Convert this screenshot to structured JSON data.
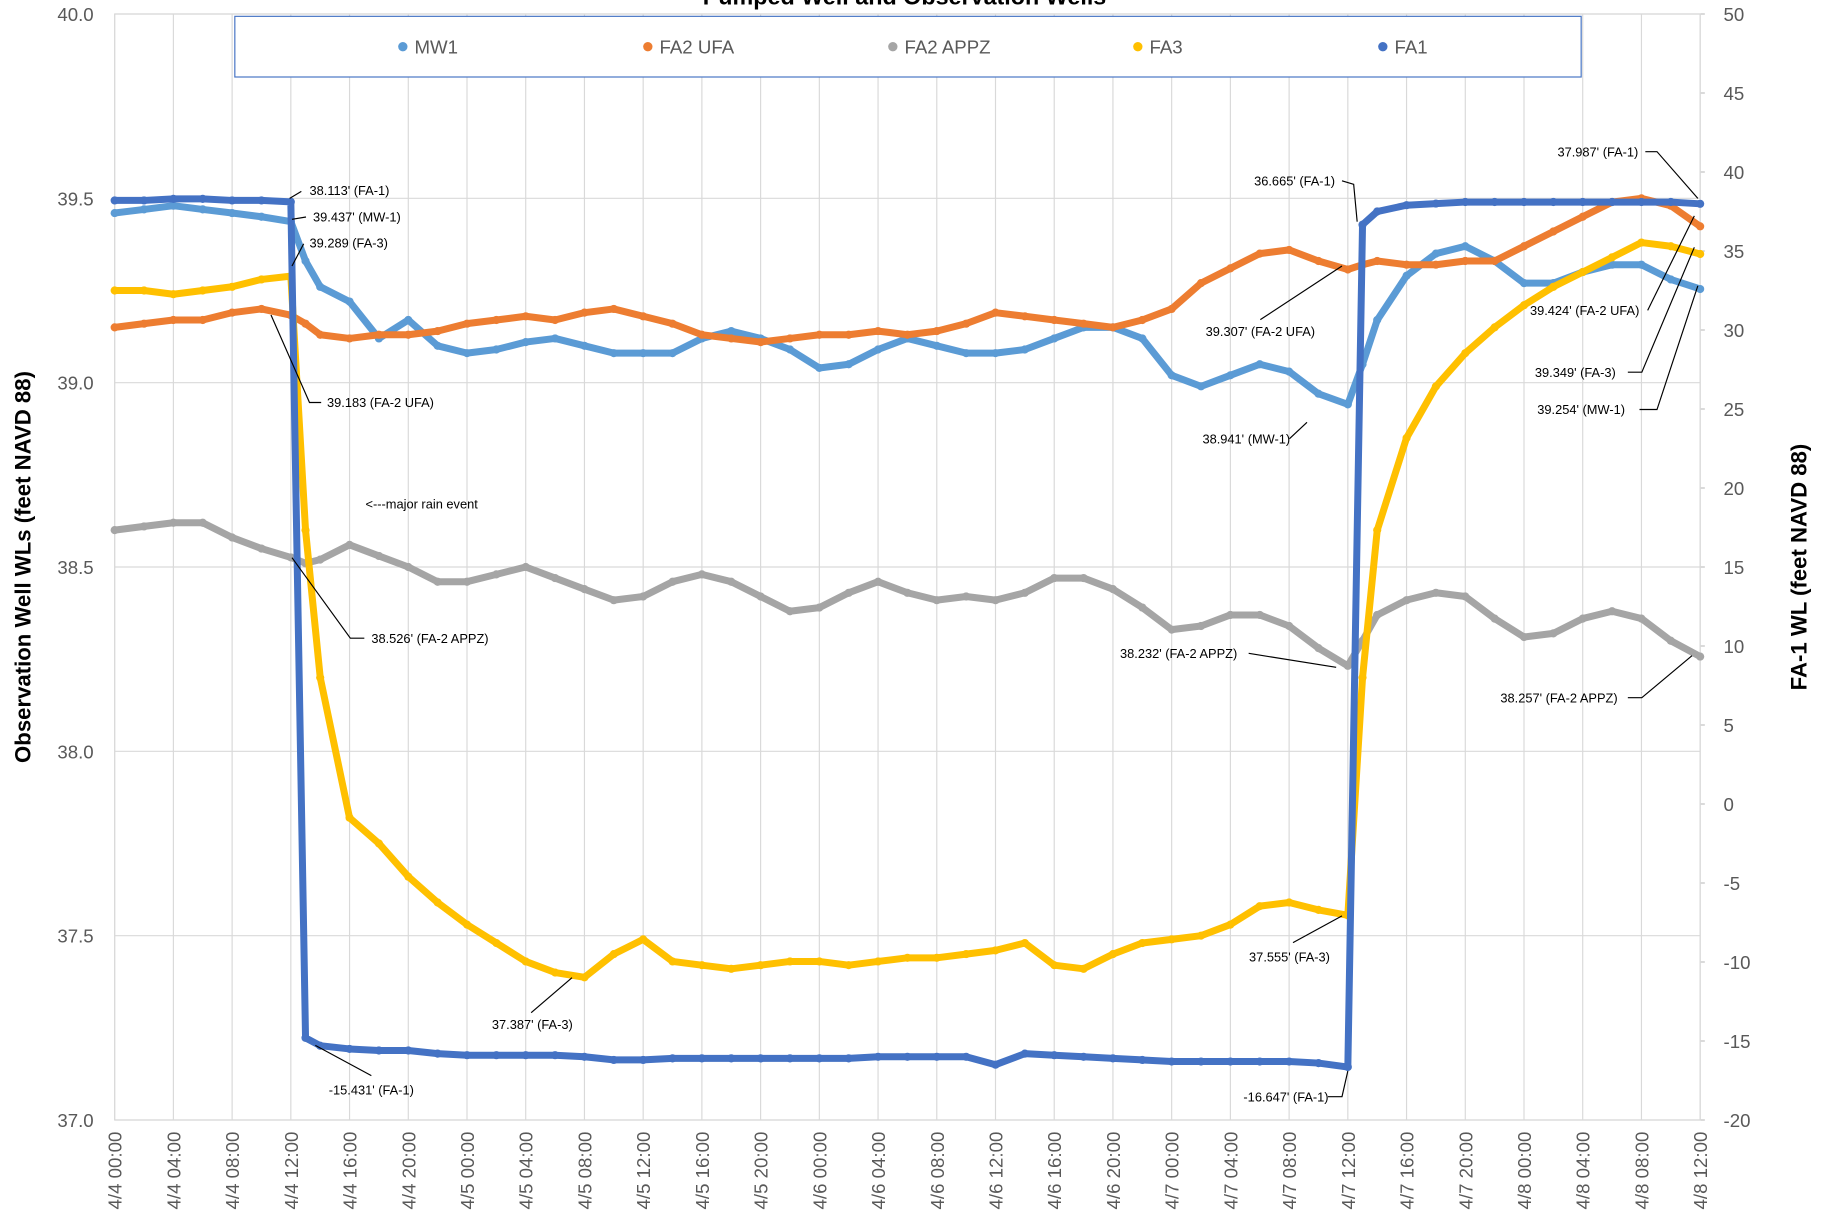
{
  "chart_data": {
    "type": "scatter",
    "title": "Pumped Well and Observation Wells",
    "y_label": "Observation Well WLs (feet NAVD 88)",
    "y2_label": "FA-1 WL (feet NAVD 88)",
    "x": [
      "4/4 00:00",
      "4/4 02:00",
      "4/4 04:00",
      "4/4 06:00",
      "4/4 08:00",
      "4/4 10:00",
      "4/4 12:00",
      "4/4 13:00",
      "4/4 14:00",
      "4/4 16:00",
      "4/4 18:00",
      "4/4 20:00",
      "4/4 22:00",
      "4/5 00:00",
      "4/5 02:00",
      "4/5 04:00",
      "4/5 06:00",
      "4/5 08:00",
      "4/5 10:00",
      "4/5 12:00",
      "4/5 14:00",
      "4/5 16:00",
      "4/5 18:00",
      "4/5 20:00",
      "4/5 22:00",
      "4/6 00:00",
      "4/6 02:00",
      "4/6 04:00",
      "4/6 06:00",
      "4/6 08:00",
      "4/6 10:00",
      "4/6 12:00",
      "4/6 14:00",
      "4/6 16:00",
      "4/6 18:00",
      "4/6 20:00",
      "4/6 22:00",
      "4/7 00:00",
      "4/7 02:00",
      "4/7 04:00",
      "4/7 06:00",
      "4/7 08:00",
      "4/7 10:00",
      "4/7 12:00",
      "4/7 13:00",
      "4/7 14:00",
      "4/7 16:00",
      "4/7 18:00",
      "4/7 20:00",
      "4/7 22:00",
      "4/8 00:00",
      "4/8 02:00",
      "4/8 04:00",
      "4/8 06:00",
      "4/8 08:00",
      "4/8 10:00",
      "4/8 12:00"
    ],
    "series": [
      {
        "name": "MW1",
        "color": "#5b9bd5",
        "values": [
          39.46,
          39.47,
          39.48,
          39.47,
          39.46,
          39.45,
          39.437,
          39.33,
          39.26,
          39.22,
          39.12,
          39.17,
          39.1,
          39.08,
          39.09,
          39.11,
          39.12,
          39.1,
          39.08,
          39.08,
          39.08,
          39.12,
          39.14,
          39.12,
          39.09,
          39.04,
          39.05,
          39.09,
          39.12,
          39.1,
          39.08,
          39.08,
          39.09,
          39.12,
          39.15,
          39.15,
          39.12,
          39.02,
          38.99,
          39.02,
          39.05,
          39.03,
          38.97,
          38.941,
          39.05,
          39.17,
          39.29,
          39.35,
          39.37,
          39.33,
          39.27,
          39.27,
          39.3,
          39.32,
          39.32,
          39.28,
          39.254
        ]
      },
      {
        "name": "FA2 UFA",
        "color": "#ed7d31",
        "values": [
          39.15,
          39.16,
          39.17,
          39.17,
          39.19,
          39.2,
          39.183,
          39.16,
          39.13,
          39.12,
          39.13,
          39.13,
          39.14,
          39.16,
          39.17,
          39.18,
          39.17,
          39.19,
          39.2,
          39.18,
          39.16,
          39.13,
          39.12,
          39.11,
          39.12,
          39.13,
          39.13,
          39.14,
          39.13,
          39.14,
          39.16,
          39.19,
          39.18,
          39.17,
          39.16,
          39.15,
          39.17,
          39.2,
          39.27,
          39.31,
          39.35,
          39.36,
          39.33,
          39.307,
          39.32,
          39.33,
          39.32,
          39.32,
          39.33,
          39.33,
          39.37,
          39.41,
          39.45,
          39.49,
          39.5,
          39.48,
          39.424
        ]
      },
      {
        "name": "FA2 APPZ",
        "color": "#a5a5a5",
        "values": [
          38.6,
          38.61,
          38.62,
          38.62,
          38.58,
          38.55,
          38.526,
          38.51,
          38.52,
          38.56,
          38.53,
          38.5,
          38.46,
          38.46,
          38.48,
          38.5,
          38.47,
          38.44,
          38.41,
          38.42,
          38.46,
          38.48,
          38.46,
          38.42,
          38.38,
          38.39,
          38.43,
          38.46,
          38.43,
          38.41,
          38.42,
          38.41,
          38.43,
          38.47,
          38.47,
          38.44,
          38.39,
          38.33,
          38.34,
          38.37,
          38.37,
          38.34,
          38.28,
          38.232,
          38.3,
          38.37,
          38.41,
          38.43,
          38.42,
          38.36,
          38.31,
          38.32,
          38.36,
          38.38,
          38.36,
          38.3,
          38.257
        ]
      },
      {
        "name": "FA3",
        "color": "#ffc000",
        "values": [
          39.25,
          39.25,
          39.24,
          39.25,
          39.26,
          39.28,
          39.289,
          38.6,
          38.2,
          37.82,
          37.75,
          37.66,
          37.59,
          37.53,
          37.48,
          37.43,
          37.4,
          37.387,
          37.45,
          37.49,
          37.43,
          37.42,
          37.41,
          37.42,
          37.43,
          37.43,
          37.42,
          37.43,
          37.44,
          37.44,
          37.45,
          37.46,
          37.48,
          37.42,
          37.41,
          37.45,
          37.48,
          37.49,
          37.5,
          37.53,
          37.58,
          37.59,
          37.57,
          37.555,
          38.2,
          38.6,
          38.85,
          38.99,
          39.08,
          39.15,
          39.21,
          39.26,
          39.3,
          39.34,
          39.38,
          39.37,
          39.349
        ]
      },
      {
        "name": "FA1",
        "color": "#4472c4",
        "axis": "y2",
        "values": [
          38.2,
          38.2,
          38.3,
          38.3,
          38.2,
          38.2,
          38.113,
          -14.8,
          -15.3,
          -15.5,
          -15.6,
          -15.6,
          -15.8,
          -15.9,
          -15.9,
          -15.9,
          -15.9,
          -16,
          -16.2,
          -16.2,
          -16.1,
          -16.1,
          -16.1,
          -16.1,
          -16.1,
          -16.1,
          -16.1,
          -16,
          -16,
          -16,
          -16,
          -16.5,
          -15.8,
          -15.9,
          -16,
          -16.1,
          -16.2,
          -16.3,
          -16.3,
          -16.3,
          -16.3,
          -16.3,
          -16.4,
          -16.647,
          36.665,
          37.5,
          37.9,
          38,
          38.1,
          38.1,
          38.1,
          38.1,
          38.1,
          38.1,
          38.1,
          38.1,
          37.987
        ]
      }
    ],
    "xlim": [
      "4/4 00:00",
      "4/8 12:00"
    ],
    "xticks": [
      "4/4 00:00",
      "4/4 04:00",
      "4/4 08:00",
      "4/4 12:00",
      "4/4 16:00",
      "4/4 20:00",
      "4/5 00:00",
      "4/5 04:00",
      "4/5 08:00",
      "4/5 12:00",
      "4/5 16:00",
      "4/5 20:00",
      "4/6 00:00",
      "4/6 04:00",
      "4/6 08:00",
      "4/6 12:00",
      "4/6 16:00",
      "4/6 20:00",
      "4/7 00:00",
      "4/7 04:00",
      "4/7 08:00",
      "4/7 12:00",
      "4/7 16:00",
      "4/7 20:00",
      "4/8 00:00",
      "4/8 04:00",
      "4/8 08:00",
      "4/8 12:00"
    ],
    "ylim": [
      37,
      40
    ],
    "yticks": [
      {
        "value": 37,
        "label": "37.0"
      },
      37.5,
      {
        "value": 38,
        "label": "38.0"
      },
      38.5,
      {
        "value": 39,
        "label": "39.0"
      },
      39.5,
      {
        "value": 40,
        "label": "40.0"
      }
    ],
    "y2lim": [
      -20,
      50
    ],
    "y2ticks": [
      -20,
      -15,
      -10,
      -5,
      0,
      5,
      10,
      15,
      20,
      25,
      30,
      35,
      40,
      45,
      50
    ],
    "grid": true,
    "legend": "top",
    "annotations": [
      "38.113' (FA-1)",
      "39.437' (MW-1)",
      "39.289 (FA-3)",
      "39.183 (FA-2 UFA)",
      "<---major rain event",
      "38.526' (FA-2 APPZ)",
      "37.387' (FA-3)",
      "-15.431' (FA-1)",
      "36.665' (FA-1)",
      "37.987' (FA-1)",
      "39.307' (FA-2 UFA)",
      "39.424' (FA-2 UFA)",
      "39.349' (FA-3)",
      "39.254' (MW-1)",
      "38.941' (MW-1)",
      "38.232' (FA-2 APPZ)",
      "38.257' (FA-2 APPZ)",
      "37.555' (FA-3)",
      "-16.647' (FA-1)"
    ]
  }
}
